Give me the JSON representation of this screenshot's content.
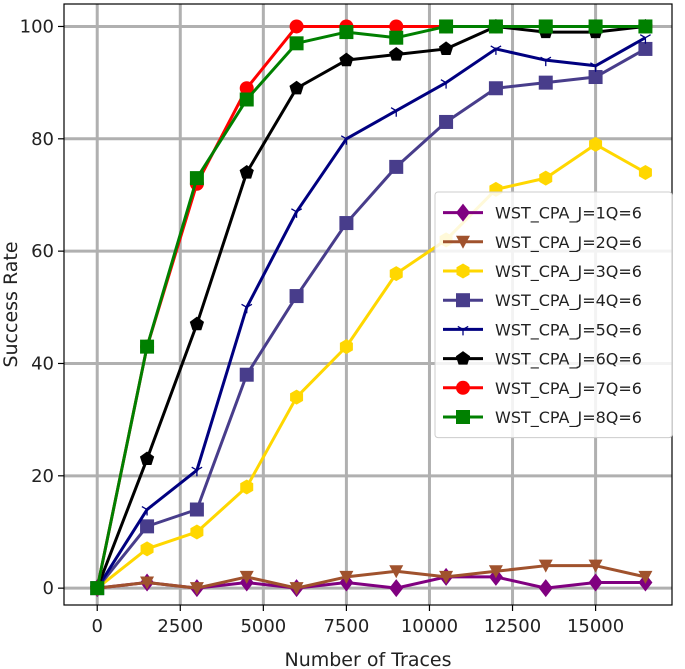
{
  "chart_data": {
    "type": "line",
    "xlabel": "Number of Traces",
    "ylabel": "Success Rate",
    "xlim": [
      -1000,
      17300
    ],
    "ylim": [
      -3,
      104
    ],
    "xticks": [
      0,
      2500,
      5000,
      7500,
      10000,
      12500,
      15000
    ],
    "xtick_labels": [
      "0",
      "2500",
      "5000",
      "7500",
      "10000",
      "12500",
      "15000"
    ],
    "yticks": [
      0,
      20,
      40,
      60,
      80,
      100
    ],
    "ytick_labels": [
      "0",
      "20",
      "40",
      "60",
      "80",
      "100"
    ],
    "grid": true,
    "legend_position": "center-right",
    "x": [
      0,
      1500,
      3000,
      4500,
      6000,
      7500,
      9000,
      10500,
      12000,
      13500,
      15000,
      16500
    ],
    "series": [
      {
        "name": "WST_CPA_J=1Q=6",
        "color": "#800080",
        "marker": "diamond",
        "values": [
          0,
          1,
          0,
          1,
          0,
          1,
          0,
          2,
          2,
          0,
          1,
          1
        ]
      },
      {
        "name": "WST_CPA_J=2Q=6",
        "color": "#a0522d",
        "marker": "triangle-down",
        "values": [
          0,
          1,
          0,
          2,
          0,
          2,
          3,
          2,
          3,
          4,
          4,
          2
        ]
      },
      {
        "name": "WST_CPA_J=3Q=6",
        "color": "#ffd700",
        "marker": "hexagon",
        "values": [
          0,
          7,
          10,
          18,
          34,
          43,
          56,
          62,
          71,
          73,
          79,
          74
        ]
      },
      {
        "name": "WST_CPA_J=4Q=6",
        "color": "#483d8b",
        "marker": "square",
        "values": [
          0,
          11,
          14,
          38,
          52,
          65,
          75,
          83,
          89,
          90,
          91,
          96
        ]
      },
      {
        "name": "WST_CPA_J=5Q=6",
        "color": "#000080",
        "marker": "tri",
        "values": [
          0,
          14,
          21,
          50,
          67,
          80,
          85,
          90,
          96,
          94,
          93,
          98
        ]
      },
      {
        "name": "WST_CPA_J=6Q=6",
        "color": "#000000",
        "marker": "pentagon",
        "values": [
          0,
          23,
          47,
          74,
          89,
          94,
          95,
          96,
          100,
          99,
          99,
          100
        ]
      },
      {
        "name": "WST_CPA_J=7Q=6",
        "color": "#ff0000",
        "marker": "circle",
        "values": [
          0,
          43,
          72,
          89,
          100,
          100,
          100,
          100,
          100,
          100,
          100,
          100
        ]
      },
      {
        "name": "WST_CPA_J=8Q=6",
        "color": "#008000",
        "marker": "square",
        "values": [
          0,
          43,
          73,
          87,
          97,
          99,
          98,
          100,
          100,
          100,
          100,
          100
        ]
      }
    ]
  }
}
